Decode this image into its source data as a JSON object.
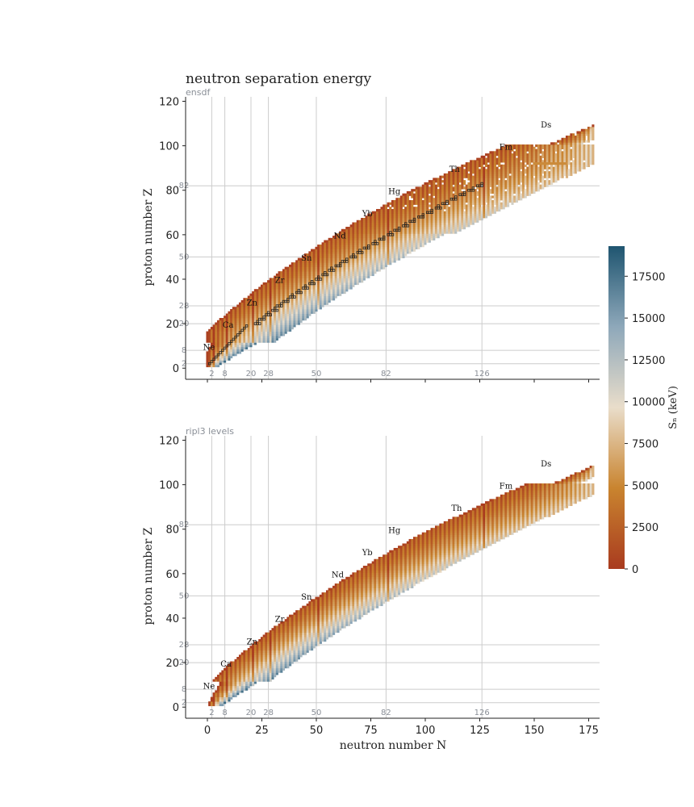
{
  "chart_data": {
    "type": "heatmap",
    "title": "neutron separation energy",
    "x_values": "neutron number N",
    "y_values": "proton number Z",
    "value": "S_n (keV)",
    "colorbar": {
      "label": "$S_n$ (keV)",
      "label_display": "Sₙ  (keV)",
      "range": [
        0,
        19300
      ],
      "ticks": [
        "0",
        "2500",
        "5000",
        "7500",
        "10000",
        "12500",
        "15000",
        "17500"
      ],
      "colors": [
        "#a93b1f",
        "#c9842f",
        "#e9ddca",
        "#8ea8ba",
        "#1f5570"
      ]
    },
    "magic_numbers": [
      "2",
      "8",
      "20",
      "28",
      "50",
      "82",
      "126"
    ],
    "panels": [
      {
        "subtitle": "ensdf",
        "xlabel": "",
        "ylabel": "proton number Z",
        "xlim": [
          -10,
          180
        ],
        "ylim": [
          -5,
          122
        ],
        "xticks": [
          "0",
          "25",
          "50",
          "75",
          "100",
          "125",
          "150",
          "175"
        ],
        "yticks": [
          "0",
          "20",
          "40",
          "60",
          "80",
          "100",
          "120"
        ],
        "elements": [
          {
            "label": "Ne",
            "n": -2,
            "z": 9
          },
          {
            "label": "Ca",
            "n": 7,
            "z": 19
          },
          {
            "label": "Zn",
            "n": 18,
            "z": 29
          },
          {
            "label": "Zr",
            "n": 31,
            "z": 39
          },
          {
            "label": "Sn",
            "n": 43,
            "z": 49
          },
          {
            "label": "Nd",
            "n": 58,
            "z": 59
          },
          {
            "label": "Yb",
            "n": 71,
            "z": 69
          },
          {
            "label": "Hg",
            "n": 83,
            "z": 79
          },
          {
            "label": "Th",
            "n": 111,
            "z": 89
          },
          {
            "label": "Fm",
            "n": 134,
            "z": 99
          },
          {
            "label": "Ds",
            "n": 153,
            "z": 109
          }
        ]
      },
      {
        "subtitle": "ripl3 levels",
        "xlabel": "neutron number N",
        "ylabel": "proton number Z",
        "xlim": [
          -10,
          180
        ],
        "ylim": [
          -5,
          122
        ],
        "xticks": [
          "0",
          "25",
          "50",
          "75",
          "100",
          "125",
          "150",
          "175"
        ],
        "yticks": [
          "0",
          "20",
          "40",
          "60",
          "80",
          "100",
          "120"
        ],
        "elements": [
          {
            "label": "Ne",
            "n": -2,
            "z": 9
          },
          {
            "label": "Ca",
            "n": 6,
            "z": 19
          },
          {
            "label": "Zn",
            "n": 18,
            "z": 29
          },
          {
            "label": "Zr",
            "n": 31,
            "z": 39
          },
          {
            "label": "Sn",
            "n": 43,
            "z": 49
          },
          {
            "label": "Nd",
            "n": 57,
            "z": 59
          },
          {
            "label": "Yb",
            "n": 71,
            "z": 69
          },
          {
            "label": "Hg",
            "n": 83,
            "z": 79
          },
          {
            "label": "Th",
            "n": 112,
            "z": 89
          },
          {
            "label": "Fm",
            "n": 134,
            "z": 99
          },
          {
            "label": "Ds",
            "n": 153,
            "z": 109
          }
        ]
      }
    ]
  }
}
